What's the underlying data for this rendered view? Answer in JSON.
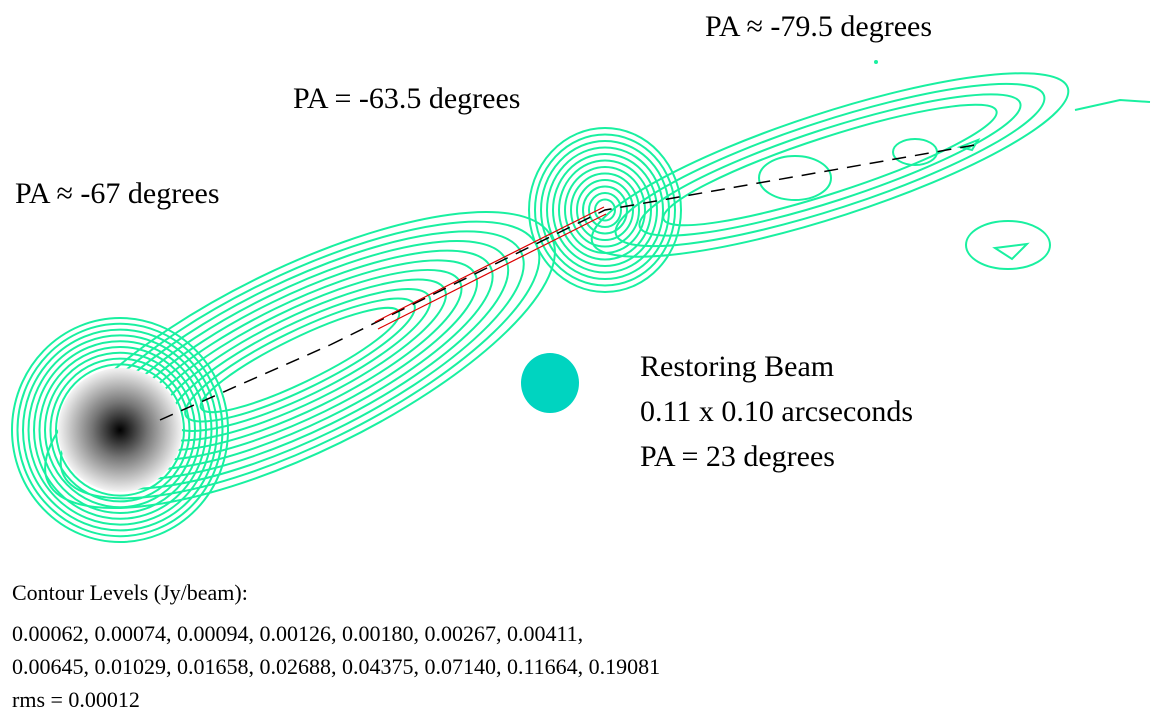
{
  "labels": {
    "pa_outer": "PA ≈ -79.5 degrees",
    "pa_mid": "PA = -63.5 degrees",
    "pa_core": "PA ≈ -67 degrees"
  },
  "beam": {
    "title": "Restoring Beam",
    "size": "0.11 x 0.10 arcseconds",
    "pa": "PA = 23 degrees"
  },
  "contours": {
    "title": "Contour Levels (Jy/beam):",
    "lines": [
      "0.00062, 0.00074, 0.00094, 0.00126, 0.00180, 0.00267, 0.00411,",
      "0.00645, 0.01029, 0.01658, 0.02688, 0.04375, 0.07140, 0.11664, 0.19081"
    ],
    "rms": "rms = 0.00012"
  }
}
